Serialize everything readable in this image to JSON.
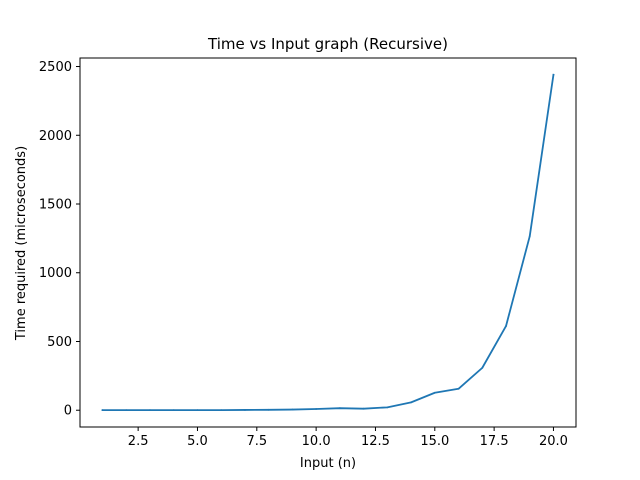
{
  "chart_data": {
    "type": "line",
    "title": "Time vs Input graph (Recursive)",
    "xlabel": "Input (n)",
    "ylabel": "Time required (microseconds)",
    "xlim": [
      0.05,
      20.95
    ],
    "ylim": [
      -122,
      2562
    ],
    "xticks": [
      2.5,
      5.0,
      7.5,
      10.0,
      12.5,
      15.0,
      17.5,
      20.0
    ],
    "xtick_labels": [
      "2.5",
      "5.0",
      "7.5",
      "10.0",
      "12.5",
      "15.0",
      "17.5",
      "20.0"
    ],
    "yticks": [
      0,
      500,
      1000,
      1500,
      2000,
      2500
    ],
    "ytick_labels": [
      "0",
      "500",
      "1000",
      "1500",
      "2000",
      "2500"
    ],
    "grid": false,
    "series": [
      {
        "color": "#1f77b4",
        "x": [
          1,
          2,
          3,
          4,
          5,
          6,
          7,
          8,
          9,
          10,
          11,
          12,
          13,
          14,
          15,
          16,
          17,
          18,
          19,
          20
        ],
        "y": [
          1,
          1,
          1,
          1,
          1,
          1,
          2,
          3,
          5,
          9,
          15,
          11,
          21,
          57,
          127,
          156,
          308,
          612,
          1265,
          2440
        ]
      }
    ]
  }
}
